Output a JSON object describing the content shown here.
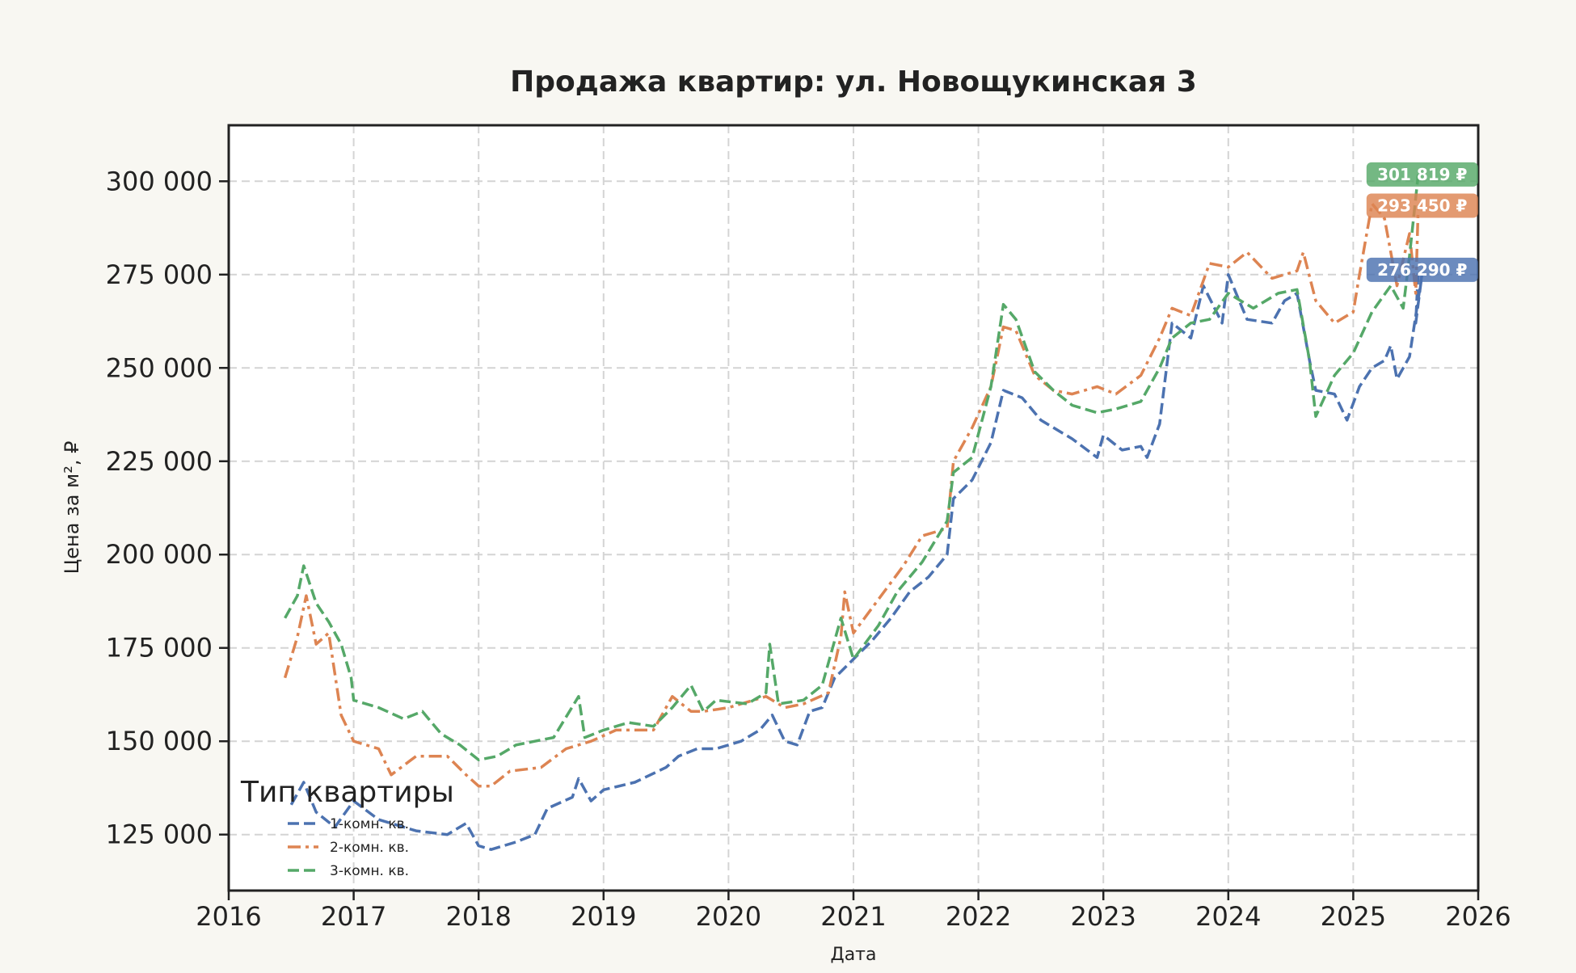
{
  "chart_data": {
    "type": "line",
    "title": "Продажа квартир: ул. Новощукинская 3",
    "xlabel": "Дата",
    "ylabel": "Цена за м², ₽",
    "xlim": [
      2016,
      2026
    ],
    "ylim": [
      110000,
      315000
    ],
    "x_ticks": [
      "2016",
      "2017",
      "2018",
      "2019",
      "2020",
      "2021",
      "2022",
      "2023",
      "2024",
      "2025",
      "2026"
    ],
    "y_ticks": [
      {
        "value": 125000,
        "label": "125 000"
      },
      {
        "value": 150000,
        "label": "150 000"
      },
      {
        "value": 175000,
        "label": "175 000"
      },
      {
        "value": 200000,
        "label": "200 000"
      },
      {
        "value": 225000,
        "label": "225 000"
      },
      {
        "value": 250000,
        "label": "250 000"
      },
      {
        "value": 275000,
        "label": "275 000"
      },
      {
        "value": 300000,
        "label": "300 000"
      }
    ],
    "grid": true,
    "legend": {
      "title": "Тип квартиры",
      "position": "bottom-left"
    },
    "series": [
      {
        "name": "1-комн. кв.",
        "color": "#4c72b0",
        "dash": "dashed",
        "end_label": "276 290 ₽",
        "points": [
          [
            2016.5,
            133000
          ],
          [
            2016.6,
            139000
          ],
          [
            2016.7,
            131000
          ],
          [
            2016.85,
            127000
          ],
          [
            2017.0,
            134000
          ],
          [
            2017.2,
            129000
          ],
          [
            2017.5,
            126000
          ],
          [
            2017.75,
            125000
          ],
          [
            2017.9,
            128000
          ],
          [
            2018.0,
            122000
          ],
          [
            2018.1,
            121000
          ],
          [
            2018.3,
            123000
          ],
          [
            2018.45,
            125000
          ],
          [
            2018.55,
            132000
          ],
          [
            2018.75,
            135000
          ],
          [
            2018.8,
            140000
          ],
          [
            2018.9,
            134000
          ],
          [
            2019.0,
            137000
          ],
          [
            2019.25,
            139000
          ],
          [
            2019.5,
            143000
          ],
          [
            2019.6,
            146000
          ],
          [
            2019.75,
            148000
          ],
          [
            2019.9,
            148000
          ],
          [
            2020.1,
            150000
          ],
          [
            2020.25,
            153000
          ],
          [
            2020.35,
            157000
          ],
          [
            2020.45,
            150000
          ],
          [
            2020.55,
            149000
          ],
          [
            2020.65,
            158000
          ],
          [
            2020.75,
            159000
          ],
          [
            2020.85,
            167000
          ],
          [
            2021.0,
            172000
          ],
          [
            2021.15,
            177000
          ],
          [
            2021.3,
            183000
          ],
          [
            2021.45,
            190000
          ],
          [
            2021.6,
            194000
          ],
          [
            2021.75,
            200000
          ],
          [
            2021.8,
            215000
          ],
          [
            2021.95,
            220000
          ],
          [
            2022.1,
            230000
          ],
          [
            2022.2,
            244000
          ],
          [
            2022.35,
            242000
          ],
          [
            2022.5,
            236000
          ],
          [
            2022.75,
            231000
          ],
          [
            2022.95,
            226000
          ],
          [
            2023.0,
            232000
          ],
          [
            2023.15,
            228000
          ],
          [
            2023.3,
            229000
          ],
          [
            2023.35,
            226000
          ],
          [
            2023.45,
            235000
          ],
          [
            2023.55,
            262000
          ],
          [
            2023.7,
            258000
          ],
          [
            2023.8,
            272000
          ],
          [
            2023.95,
            262000
          ],
          [
            2024.0,
            275000
          ],
          [
            2024.15,
            263000
          ],
          [
            2024.35,
            262000
          ],
          [
            2024.45,
            268000
          ],
          [
            2024.55,
            270000
          ],
          [
            2024.65,
            252000
          ],
          [
            2024.7,
            244000
          ],
          [
            2024.85,
            243000
          ],
          [
            2024.95,
            236000
          ],
          [
            2025.05,
            245000
          ],
          [
            2025.15,
            250000
          ],
          [
            2025.25,
            252000
          ],
          [
            2025.3,
            256000
          ],
          [
            2025.35,
            247000
          ],
          [
            2025.45,
            253000
          ],
          [
            2025.55,
            275000
          ],
          [
            2025.5,
            262000
          ],
          [
            2025.52,
            276290
          ]
        ]
      },
      {
        "name": "2-комн. кв.",
        "color": "#dd8452",
        "dash": "dashdot",
        "end_label": "293 450 ₽",
        "points": [
          [
            2016.45,
            167000
          ],
          [
            2016.55,
            178000
          ],
          [
            2016.62,
            189000
          ],
          [
            2016.7,
            176000
          ],
          [
            2016.8,
            179000
          ],
          [
            2016.9,
            157000
          ],
          [
            2017.0,
            150000
          ],
          [
            2017.2,
            148000
          ],
          [
            2017.3,
            141000
          ],
          [
            2017.5,
            146000
          ],
          [
            2017.75,
            146000
          ],
          [
            2017.9,
            141000
          ],
          [
            2018.0,
            138000
          ],
          [
            2018.1,
            138000
          ],
          [
            2018.25,
            142000
          ],
          [
            2018.5,
            143000
          ],
          [
            2018.7,
            148000
          ],
          [
            2018.9,
            150000
          ],
          [
            2019.1,
            153000
          ],
          [
            2019.4,
            153000
          ],
          [
            2019.55,
            162000
          ],
          [
            2019.7,
            158000
          ],
          [
            2019.8,
            158000
          ],
          [
            2020.0,
            159000
          ],
          [
            2020.3,
            162000
          ],
          [
            2020.45,
            159000
          ],
          [
            2020.6,
            160000
          ],
          [
            2020.8,
            163000
          ],
          [
            2020.9,
            178000
          ],
          [
            2020.93,
            190000
          ],
          [
            2021.0,
            179000
          ],
          [
            2021.2,
            188000
          ],
          [
            2021.4,
            197000
          ],
          [
            2021.55,
            205000
          ],
          [
            2021.75,
            207000
          ],
          [
            2021.8,
            225000
          ],
          [
            2021.95,
            234000
          ],
          [
            2022.1,
            245000
          ],
          [
            2022.2,
            261000
          ],
          [
            2022.3,
            260000
          ],
          [
            2022.45,
            248000
          ],
          [
            2022.6,
            244000
          ],
          [
            2022.75,
            243000
          ],
          [
            2022.95,
            245000
          ],
          [
            2023.1,
            243000
          ],
          [
            2023.3,
            248000
          ],
          [
            2023.45,
            258000
          ],
          [
            2023.55,
            266000
          ],
          [
            2023.7,
            264000
          ],
          [
            2023.85,
            278000
          ],
          [
            2024.0,
            277000
          ],
          [
            2024.15,
            281000
          ],
          [
            2024.35,
            274000
          ],
          [
            2024.55,
            276000
          ],
          [
            2024.6,
            281000
          ],
          [
            2024.7,
            268000
          ],
          [
            2024.85,
            262000
          ],
          [
            2025.0,
            265000
          ],
          [
            2025.05,
            275000
          ],
          [
            2025.15,
            294000
          ],
          [
            2025.25,
            290000
          ],
          [
            2025.35,
            272000
          ],
          [
            2025.45,
            286000
          ],
          [
            2025.5,
            270000
          ],
          [
            2025.52,
            293450
          ]
        ]
      },
      {
        "name": "3-комн. кв.",
        "color": "#55a868",
        "dash": "dashed",
        "end_label": "301 819 ₽",
        "points": [
          [
            2016.45,
            183000
          ],
          [
            2016.55,
            189000
          ],
          [
            2016.6,
            197000
          ],
          [
            2016.7,
            187000
          ],
          [
            2016.8,
            182000
          ],
          [
            2016.9,
            176000
          ],
          [
            2016.98,
            167000
          ],
          [
            2017.0,
            161000
          ],
          [
            2017.2,
            159000
          ],
          [
            2017.4,
            156000
          ],
          [
            2017.55,
            158000
          ],
          [
            2017.7,
            152000
          ],
          [
            2017.85,
            149000
          ],
          [
            2018.0,
            145000
          ],
          [
            2018.15,
            146000
          ],
          [
            2018.3,
            149000
          ],
          [
            2018.45,
            150000
          ],
          [
            2018.6,
            151000
          ],
          [
            2018.8,
            162000
          ],
          [
            2018.85,
            151000
          ],
          [
            2019.0,
            153000
          ],
          [
            2019.2,
            155000
          ],
          [
            2019.4,
            154000
          ],
          [
            2019.55,
            159000
          ],
          [
            2019.7,
            165000
          ],
          [
            2019.8,
            158000
          ],
          [
            2019.9,
            161000
          ],
          [
            2020.15,
            160000
          ],
          [
            2020.3,
            163000
          ],
          [
            2020.33,
            176000
          ],
          [
            2020.4,
            160000
          ],
          [
            2020.6,
            161000
          ],
          [
            2020.75,
            165000
          ],
          [
            2020.9,
            183000
          ],
          [
            2021.0,
            172000
          ],
          [
            2021.2,
            181000
          ],
          [
            2021.35,
            190000
          ],
          [
            2021.55,
            198000
          ],
          [
            2021.75,
            209000
          ],
          [
            2021.8,
            222000
          ],
          [
            2021.95,
            226000
          ],
          [
            2022.1,
            245000
          ],
          [
            2022.2,
            267000
          ],
          [
            2022.3,
            263000
          ],
          [
            2022.45,
            249000
          ],
          [
            2022.6,
            244000
          ],
          [
            2022.75,
            240000
          ],
          [
            2022.95,
            238000
          ],
          [
            2023.1,
            239000
          ],
          [
            2023.3,
            241000
          ],
          [
            2023.45,
            250000
          ],
          [
            2023.55,
            258000
          ],
          [
            2023.7,
            262000
          ],
          [
            2023.85,
            263000
          ],
          [
            2024.0,
            270000
          ],
          [
            2024.2,
            266000
          ],
          [
            2024.4,
            270000
          ],
          [
            2024.55,
            271000
          ],
          [
            2024.65,
            252000
          ],
          [
            2024.7,
            237000
          ],
          [
            2024.85,
            248000
          ],
          [
            2025.0,
            254000
          ],
          [
            2025.15,
            265000
          ],
          [
            2025.3,
            272000
          ],
          [
            2025.4,
            266000
          ],
          [
            2025.45,
            280000
          ],
          [
            2025.52,
            301819
          ]
        ]
      }
    ]
  }
}
